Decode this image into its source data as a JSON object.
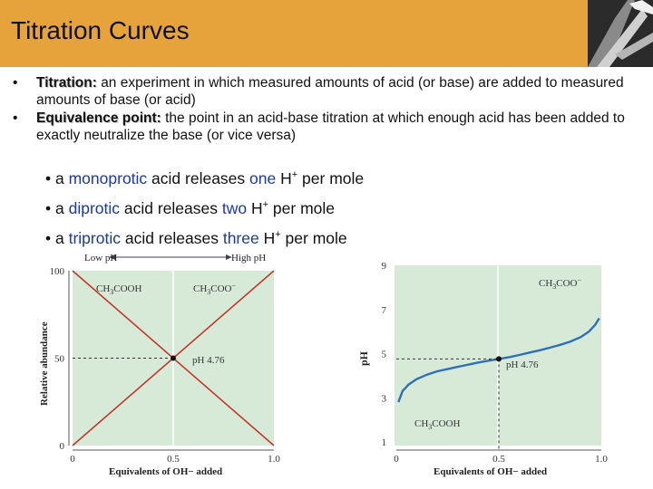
{
  "title": "Titration Curves",
  "definitions": [
    {
      "term": "Titration:",
      "text": "an experiment in which measured amounts of acid (or base) are added to measured amounts of base (or acid)"
    },
    {
      "term": "Equivalence point:",
      "text": "the point in an acid-base titration at which enough acid has been added to exactly neutralize the base (or vice versa)"
    }
  ],
  "examples": [
    {
      "prefix": "a ",
      "kind": "monoprotic",
      "middle": " acid releases ",
      "count": "one",
      "ion": "H",
      "charge": "+",
      "suffix": " per mole"
    },
    {
      "prefix": "a ",
      "kind": "diprotic",
      "middle": " acid releases ",
      "count": "two",
      "ion": "H",
      "charge": "+",
      "suffix": " per mole"
    },
    {
      "prefix": "a ",
      "kind": "triprotic",
      "middle": " acid releases ",
      "count": "three",
      "ion": "H",
      "charge": "+",
      "suffix": " per mole"
    }
  ],
  "colors": {
    "title_bar": "#e6a33c",
    "highlight_text": "#1a3aa0",
    "chart_bg": "#d7ead8",
    "line": "#c0392b",
    "curve": "#2f6fba"
  },
  "chart_data": [
    {
      "type": "line",
      "top_left_label": "Low pH",
      "top_right_label": "High pH",
      "xlabel": "Equivalents of OH− added",
      "ylabel": "Relative abundance",
      "xlim": [
        0,
        1.0
      ],
      "ylim": [
        0,
        100
      ],
      "x_ticks": [
        "0",
        "0.5",
        "1.0"
      ],
      "y_ticks": [
        "0",
        "50",
        "100"
      ],
      "series": [
        {
          "name": "CH3COOH",
          "x": [
            0,
            1.0
          ],
          "y": [
            100,
            0
          ]
        },
        {
          "name": "CH3COO−",
          "x": [
            0,
            1.0
          ],
          "y": [
            0,
            100
          ]
        }
      ],
      "point": {
        "x": 0.5,
        "y": 50,
        "label": "pH 4.76"
      }
    },
    {
      "type": "line",
      "xlabel": "Equivalents of OH− added",
      "ylabel": "pH",
      "xlim": [
        0,
        1.0
      ],
      "ylim": [
        1,
        9
      ],
      "x_ticks": [
        "0",
        "0.5",
        "1.0"
      ],
      "y_ticks": [
        "1",
        "3",
        "5",
        "7",
        "9"
      ],
      "region_labels": {
        "top": "CH3COO−",
        "bottom": "CH3COOH"
      },
      "series": [
        {
          "x": [
            0.01,
            0.03,
            0.06,
            0.1,
            0.15,
            0.2,
            0.25,
            0.3,
            0.35,
            0.4,
            0.45,
            0.5,
            0.55,
            0.6,
            0.65,
            0.7,
            0.75,
            0.8,
            0.85,
            0.9,
            0.94,
            0.97,
            0.99
          ],
          "y": [
            2.8,
            3.3,
            3.6,
            3.85,
            4.05,
            4.2,
            4.3,
            4.4,
            4.5,
            4.6,
            4.68,
            4.76,
            4.84,
            4.94,
            5.05,
            5.15,
            5.27,
            5.4,
            5.55,
            5.75,
            6.0,
            6.3,
            6.6
          ]
        }
      ],
      "point": {
        "x": 0.5,
        "y": 4.76,
        "label": "pH 4.76"
      }
    }
  ]
}
